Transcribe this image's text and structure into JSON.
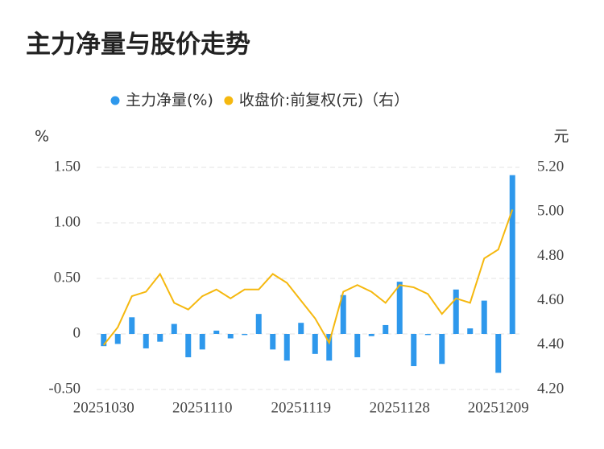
{
  "chart_data": {
    "type": "bar_line",
    "title": "主力净量与股价走势",
    "y_label": "%",
    "y2_label": "元",
    "categories": [
      "20251030",
      null,
      null,
      null,
      null,
      null,
      null,
      "20251110",
      null,
      null,
      null,
      null,
      null,
      null,
      "20251119",
      null,
      null,
      null,
      null,
      null,
      null,
      "20251128",
      null,
      null,
      null,
      null,
      null,
      null,
      "20251209",
      null
    ],
    "series": [
      {
        "name": "主力净量(%)",
        "type": "bar",
        "color": "#2e98ec",
        "values": [
          -0.11,
          -0.09,
          0.15,
          -0.13,
          -0.07,
          0.09,
          -0.21,
          -0.14,
          0.03,
          -0.04,
          -0.01,
          0.18,
          -0.14,
          -0.24,
          0.1,
          -0.18,
          -0.24,
          0.35,
          -0.21,
          -0.02,
          0.08,
          0.47,
          -0.29,
          -0.01,
          -0.27,
          0.4,
          0.05,
          0.3,
          -0.35,
          1.43
        ]
      },
      {
        "name": "收盘价:前复权(元)（右）",
        "type": "line",
        "axis": "y2",
        "color": "#f5b80f",
        "values": [
          4.4,
          4.48,
          4.62,
          4.64,
          4.72,
          4.59,
          4.56,
          4.62,
          4.65,
          4.61,
          4.65,
          4.65,
          4.72,
          4.68,
          4.6,
          4.52,
          4.41,
          4.64,
          4.67,
          4.64,
          4.59,
          4.67,
          4.66,
          4.63,
          4.54,
          4.61,
          4.59,
          4.79,
          4.83,
          5.01
        ]
      }
    ],
    "ylim": [
      -0.5,
      1.5
    ],
    "yticks": [
      {
        "value": -0.5,
        "label": "-0.50"
      },
      0,
      {
        "value": 0.5,
        "label": "0.50"
      },
      {
        "value": 1.0,
        "label": "1.00"
      },
      {
        "value": 1.5,
        "label": "1.50"
      }
    ],
    "y2lim": [
      4.2,
      5.2
    ],
    "y2ticks": [
      {
        "value": 4.2,
        "label": "4.20"
      },
      {
        "value": 4.4,
        "label": "4.40"
      },
      {
        "value": 4.6,
        "label": "4.60"
      },
      {
        "value": 4.8,
        "label": "4.80"
      },
      {
        "value": 5.0,
        "label": "5.00"
      },
      {
        "value": 5.2,
        "label": "5.20"
      }
    ],
    "grid": true,
    "legend": "top"
  }
}
